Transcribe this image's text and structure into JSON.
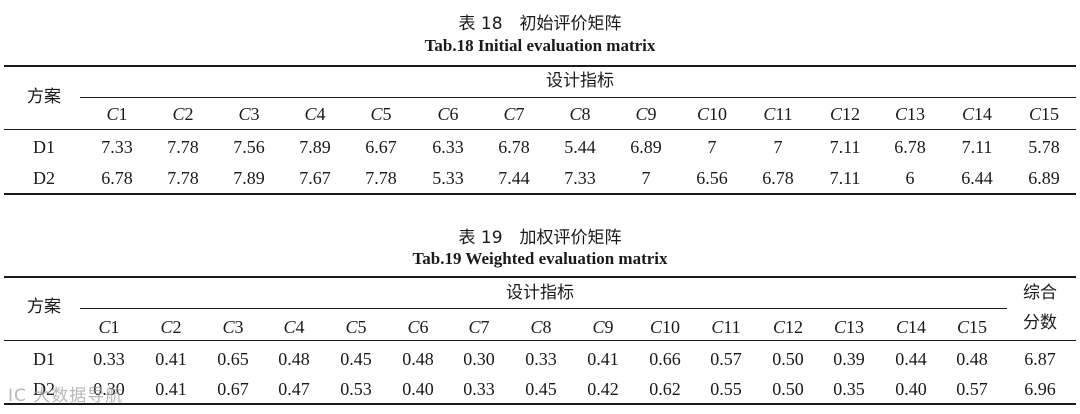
{
  "table18": {
    "caption_cn": "表 18　初始评价矩阵",
    "caption_en": "Tab.18 Initial evaluation matrix",
    "row_header": "方案",
    "group_header": "设计指标",
    "columns": [
      "1",
      "2",
      "3",
      "4",
      "5",
      "6",
      "7",
      "8",
      "9",
      "10",
      "11",
      "12",
      "13",
      "14",
      "15"
    ],
    "column_prefix": "C",
    "rows": [
      {
        "label": "D1",
        "values": [
          "7.33",
          "7.78",
          "7.56",
          "7.89",
          "6.67",
          "6.33",
          "6.78",
          "5.44",
          "6.89",
          "7",
          "7",
          "7.11",
          "6.78",
          "7.11",
          "5.78"
        ]
      },
      {
        "label": "D2",
        "values": [
          "6.78",
          "7.78",
          "7.89",
          "7.67",
          "7.78",
          "5.33",
          "7.44",
          "7.33",
          "7",
          "6.56",
          "6.78",
          "7.11",
          "6",
          "6.44",
          "6.89"
        ]
      }
    ]
  },
  "table19": {
    "caption_cn": "表 19　加权评价矩阵",
    "caption_en": "Tab.19 Weighted evaluation matrix",
    "row_header": "方案",
    "group_header": "设计指标",
    "score_header_line1": "综合",
    "score_header_line2": "分数",
    "columns": [
      "1",
      "2",
      "3",
      "4",
      "5",
      "6",
      "7",
      "8",
      "9",
      "10",
      "11",
      "12",
      "13",
      "14",
      "15"
    ],
    "column_prefix": "C",
    "rows": [
      {
        "label": "D1",
        "values": [
          "0.33",
          "0.41",
          "0.65",
          "0.48",
          "0.45",
          "0.48",
          "0.30",
          "0.33",
          "0.41",
          "0.66",
          "0.57",
          "0.50",
          "0.39",
          "0.44",
          "0.48"
        ],
        "score": "6.87"
      },
      {
        "label": "D2",
        "values": [
          "0.30",
          "0.41",
          "0.67",
          "0.47",
          "0.53",
          "0.40",
          "0.33",
          "0.45",
          "0.42",
          "0.62",
          "0.55",
          "0.50",
          "0.35",
          "0.40",
          "0.57"
        ],
        "score": "6.96"
      }
    ]
  },
  "watermark": "IC 大数据导航"
}
